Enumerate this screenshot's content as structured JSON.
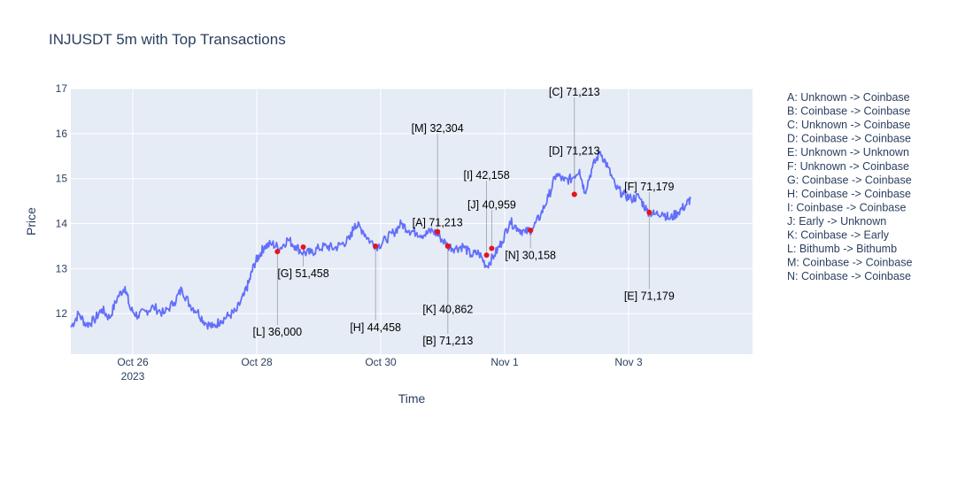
{
  "chart_data": {
    "type": "line",
    "title": "INJUSDT 5m with Top Transactions",
    "xlabel": "Time",
    "ylabel": "Price",
    "x_range": [
      "2023-10-25 00:00",
      "2023-11-05 00:00"
    ],
    "ylim": [
      11.1,
      17
    ],
    "x_ticks": [
      {
        "date": "2023-10-26",
        "label": "Oct 26",
        "sublabel": "2023"
      },
      {
        "date": "2023-10-28",
        "label": "Oct 28",
        "sublabel": ""
      },
      {
        "date": "2023-10-30",
        "label": "Oct 30",
        "sublabel": ""
      },
      {
        "date": "2023-11-01",
        "label": "Nov 1",
        "sublabel": ""
      },
      {
        "date": "2023-11-03",
        "label": "Nov 3",
        "sublabel": ""
      }
    ],
    "y_ticks": [
      12,
      13,
      14,
      15,
      16,
      17
    ],
    "grid": true,
    "line_color": "#636efa",
    "marker_color": "#e5151b",
    "series": [
      {
        "points": [
          [
            "2023-10-25 00:00",
            11.7
          ],
          [
            "2023-10-25 03:00",
            12.0
          ],
          [
            "2023-10-25 06:00",
            11.75
          ],
          [
            "2023-10-25 09:00",
            11.85
          ],
          [
            "2023-10-25 12:00",
            12.1
          ],
          [
            "2023-10-25 15:00",
            11.9
          ],
          [
            "2023-10-25 18:00",
            12.35
          ],
          [
            "2023-10-25 21:00",
            12.6
          ],
          [
            "2023-10-25 23:00",
            12.1
          ],
          [
            "2023-10-26 02:00",
            11.95
          ],
          [
            "2023-10-26 05:00",
            12.05
          ],
          [
            "2023-10-26 08:00",
            12.15
          ],
          [
            "2023-10-26 12:00",
            12.0
          ],
          [
            "2023-10-26 16:00",
            12.25
          ],
          [
            "2023-10-26 19:00",
            12.55
          ],
          [
            "2023-10-26 22:00",
            12.2
          ],
          [
            "2023-10-27 01:00",
            12.05
          ],
          [
            "2023-10-27 04:00",
            11.8
          ],
          [
            "2023-10-27 07:00",
            11.7
          ],
          [
            "2023-10-27 10:00",
            11.85
          ],
          [
            "2023-10-27 13:00",
            11.95
          ],
          [
            "2023-10-27 16:00",
            12.05
          ],
          [
            "2023-10-27 19:00",
            12.4
          ],
          [
            "2023-10-27 21:00",
            12.7
          ],
          [
            "2023-10-27 23:00",
            13.1
          ],
          [
            "2023-10-28 01:00",
            13.3
          ],
          [
            "2023-10-28 03:00",
            13.5
          ],
          [
            "2023-10-28 06:00",
            13.55
          ],
          [
            "2023-10-28 09:00",
            13.45
          ],
          [
            "2023-10-28 12:00",
            13.65
          ],
          [
            "2023-10-28 15:00",
            13.5
          ],
          [
            "2023-10-28 18:00",
            13.35
          ],
          [
            "2023-10-28 21:00",
            13.35
          ],
          [
            "2023-10-29 00:00",
            13.45
          ],
          [
            "2023-10-29 03:00",
            13.5
          ],
          [
            "2023-10-29 06:00",
            13.45
          ],
          [
            "2023-10-29 09:00",
            13.55
          ],
          [
            "2023-10-29 12:00",
            13.65
          ],
          [
            "2023-10-29 14:00",
            14.0
          ],
          [
            "2023-10-29 17:00",
            13.85
          ],
          [
            "2023-10-29 20:00",
            13.6
          ],
          [
            "2023-10-29 23:00",
            13.5
          ],
          [
            "2023-10-30 02:00",
            13.65
          ],
          [
            "2023-10-30 05:00",
            13.8
          ],
          [
            "2023-10-30 08:00",
            14.0
          ],
          [
            "2023-10-30 11:00",
            13.85
          ],
          [
            "2023-10-30 14:00",
            13.8
          ],
          [
            "2023-10-30 17:00",
            13.75
          ],
          [
            "2023-10-30 20:00",
            13.85
          ],
          [
            "2023-10-30 23:00",
            13.7
          ],
          [
            "2023-10-31 02:00",
            13.5
          ],
          [
            "2023-10-31 05:00",
            13.45
          ],
          [
            "2023-10-31 08:00",
            13.5
          ],
          [
            "2023-10-31 11:00",
            13.3
          ],
          [
            "2023-10-31 14:00",
            13.35
          ],
          [
            "2023-10-31 17:00",
            13.05
          ],
          [
            "2023-10-31 20:00",
            13.3
          ],
          [
            "2023-10-31 23:00",
            13.6
          ],
          [
            "2023-11-01 02:00",
            14.05
          ],
          [
            "2023-11-01 05:00",
            13.9
          ],
          [
            "2023-11-01 08:00",
            13.8
          ],
          [
            "2023-11-01 11:00",
            13.9
          ],
          [
            "2023-11-01 14:00",
            14.2
          ],
          [
            "2023-11-01 17:00",
            14.6
          ],
          [
            "2023-11-01 20:00",
            15.1
          ],
          [
            "2023-11-01 23:00",
            14.95
          ],
          [
            "2023-11-02 02:00",
            15.0
          ],
          [
            "2023-11-02 05:00",
            15.2
          ],
          [
            "2023-11-02 07:00",
            14.7
          ],
          [
            "2023-11-02 10:00",
            15.25
          ],
          [
            "2023-11-02 13:00",
            15.6
          ],
          [
            "2023-11-02 16:00",
            15.25
          ],
          [
            "2023-11-02 19:00",
            14.8
          ],
          [
            "2023-11-02 22:00",
            14.65
          ],
          [
            "2023-11-03 01:00",
            14.55
          ],
          [
            "2023-11-03 04:00",
            14.6
          ],
          [
            "2023-11-03 07:00",
            14.3
          ],
          [
            "2023-11-03 10:00",
            14.2
          ],
          [
            "2023-11-03 13:00",
            14.25
          ],
          [
            "2023-11-03 16:00",
            14.1
          ],
          [
            "2023-11-03 19:00",
            14.25
          ],
          [
            "2023-11-03 22:00",
            14.4
          ],
          [
            "2023-11-04 00:00",
            14.55
          ]
        ]
      }
    ],
    "transactions": [
      {
        "id": "A",
        "label": "[A] 71,213",
        "route": "A: Unknown -> Coinbase",
        "time": "2023-10-30 22:00",
        "price": 13.82,
        "label_y": 13.9
      },
      {
        "id": "B",
        "label": "[B] 71,213",
        "route": "B: Coinbase -> Coinbase",
        "time": "2023-10-31 02:00",
        "price": 13.5,
        "label_y": 11.55
      },
      {
        "id": "C",
        "label": "[C] 71,213",
        "route": "C: Unknown -> Coinbase",
        "time": "2023-11-02 03:00",
        "price": 14.65,
        "label_y": 16.8
      },
      {
        "id": "D",
        "label": "[D] 71,213",
        "route": "D: Coinbase -> Coinbase",
        "time": "2023-11-02 03:00",
        "price": 14.65,
        "label_y": 15.5
      },
      {
        "id": "E",
        "label": "[E] 71,179",
        "route": "E: Unknown -> Unknown",
        "time": "2023-11-03 08:00",
        "price": 14.25,
        "label_y": 12.55
      },
      {
        "id": "F",
        "label": "[F] 71,179",
        "route": "F: Unknown -> Coinbase",
        "time": "2023-11-03 08:00",
        "price": 14.25,
        "label_y": 14.7
      },
      {
        "id": "G",
        "label": "[G] 51,458",
        "route": "G: Coinbase -> Coinbase",
        "time": "2023-10-28 18:00",
        "price": 13.48,
        "label_y": 13.05
      },
      {
        "id": "H",
        "label": "[H] 44,458",
        "route": "H: Coinbase -> Coinbase",
        "time": "2023-10-29 22:00",
        "price": 13.5,
        "label_y": 11.85
      },
      {
        "id": "I",
        "label": "[I] 42,158",
        "route": "I: Coinbase -> Coinbase",
        "time": "2023-10-31 17:00",
        "price": 13.3,
        "label_y": 14.95
      },
      {
        "id": "J",
        "label": "[J] 40,959",
        "route": "J: Early -> Unknown",
        "time": "2023-10-31 19:00",
        "price": 13.45,
        "label_y": 14.3
      },
      {
        "id": "K",
        "label": "[K] 40,862",
        "route": "K: Coinbase -> Early",
        "time": "2023-10-31 02:00",
        "price": 13.5,
        "label_y": 12.25
      },
      {
        "id": "L",
        "label": "[L] 36,000",
        "route": "L: Bithumb -> Bithumb",
        "time": "2023-10-28 08:00",
        "price": 13.38,
        "label_y": 11.75
      },
      {
        "id": "M",
        "label": "[M] 32,304",
        "route": "M: Coinbase -> Coinbase",
        "time": "2023-10-30 22:00",
        "price": 13.82,
        "label_y": 16.0
      },
      {
        "id": "N",
        "label": "[N] 30,158",
        "route": "N: Coinbase -> Coinbase",
        "time": "2023-11-01 10:00",
        "price": 13.85,
        "label_y": 13.45
      }
    ]
  }
}
